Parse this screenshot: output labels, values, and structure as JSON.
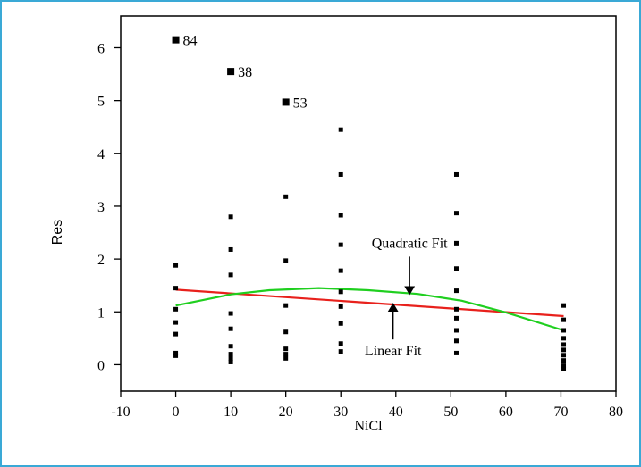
{
  "chart_data": {
    "type": "scatter",
    "title": "",
    "xlabel": "NiCl",
    "ylabel": "Res",
    "xlim": [
      -10,
      80
    ],
    "ylim": [
      -0.5,
      6.6
    ],
    "x_ticks": [
      -10,
      0,
      10,
      20,
      30,
      40,
      50,
      60,
      70,
      80
    ],
    "y_ticks": [
      0,
      1,
      2,
      3,
      4,
      5,
      6
    ],
    "points": [
      {
        "x": 0,
        "y": 6.15
      },
      {
        "x": 0,
        "y": 1.88
      },
      {
        "x": 0,
        "y": 1.45
      },
      {
        "x": 0,
        "y": 1.05
      },
      {
        "x": 0,
        "y": 0.8
      },
      {
        "x": 0,
        "y": 0.58
      },
      {
        "x": 0,
        "y": 0.22
      },
      {
        "x": 0,
        "y": 0.17
      },
      {
        "x": 10,
        "y": 5.55
      },
      {
        "x": 10,
        "y": 2.8
      },
      {
        "x": 10,
        "y": 2.18
      },
      {
        "x": 10,
        "y": 1.7
      },
      {
        "x": 10,
        "y": 0.97
      },
      {
        "x": 10,
        "y": 0.68
      },
      {
        "x": 10,
        "y": 0.35
      },
      {
        "x": 10,
        "y": 0.2
      },
      {
        "x": 10,
        "y": 0.12
      },
      {
        "x": 10,
        "y": 0.05
      },
      {
        "x": 20,
        "y": 4.97
      },
      {
        "x": 20,
        "y": 3.18
      },
      {
        "x": 20,
        "y": 1.97
      },
      {
        "x": 20,
        "y": 1.12
      },
      {
        "x": 20,
        "y": 0.62
      },
      {
        "x": 20,
        "y": 0.3
      },
      {
        "x": 20,
        "y": 0.2
      },
      {
        "x": 20,
        "y": 0.12
      },
      {
        "x": 30,
        "y": 4.45
      },
      {
        "x": 30,
        "y": 3.6
      },
      {
        "x": 30,
        "y": 2.83
      },
      {
        "x": 30,
        "y": 2.27
      },
      {
        "x": 30,
        "y": 1.78
      },
      {
        "x": 30,
        "y": 1.38
      },
      {
        "x": 30,
        "y": 1.1
      },
      {
        "x": 30,
        "y": 0.78
      },
      {
        "x": 30,
        "y": 0.4
      },
      {
        "x": 30,
        "y": 0.25
      },
      {
        "x": 51,
        "y": 3.6
      },
      {
        "x": 51,
        "y": 2.87
      },
      {
        "x": 51,
        "y": 2.3
      },
      {
        "x": 51,
        "y": 1.82
      },
      {
        "x": 51,
        "y": 1.4
      },
      {
        "x": 51,
        "y": 1.05
      },
      {
        "x": 51,
        "y": 0.88
      },
      {
        "x": 51,
        "y": 0.65
      },
      {
        "x": 51,
        "y": 0.45
      },
      {
        "x": 51,
        "y": 0.22
      },
      {
        "x": 70.5,
        "y": 1.12
      },
      {
        "x": 70.5,
        "y": 0.85
      },
      {
        "x": 70.5,
        "y": 0.65
      },
      {
        "x": 70.5,
        "y": 0.5
      },
      {
        "x": 70.5,
        "y": 0.38
      },
      {
        "x": 70.5,
        "y": 0.28
      },
      {
        "x": 70.5,
        "y": 0.18
      },
      {
        "x": 70.5,
        "y": 0.08
      },
      {
        "x": 70.5,
        "y": -0.02
      },
      {
        "x": 70.5,
        "y": -0.08
      }
    ],
    "point_labels": [
      {
        "x": 0,
        "y": 6.15,
        "text": "84"
      },
      {
        "x": 10,
        "y": 5.55,
        "text": "38"
      },
      {
        "x": 20,
        "y": 4.97,
        "text": "53"
      }
    ],
    "series": [
      {
        "name": "Linear Fit",
        "color": "#e8211c",
        "x": [
          0,
          70.5
        ],
        "y": [
          1.42,
          0.92
        ]
      },
      {
        "name": "Quadratic Fit",
        "color": "#1fcf1f",
        "x": [
          0,
          10,
          17,
          26,
          35,
          44,
          52,
          60,
          70.5
        ],
        "y": [
          1.12,
          1.33,
          1.41,
          1.45,
          1.41,
          1.34,
          1.21,
          0.99,
          0.65
        ]
      }
    ],
    "annotations": [
      {
        "text": "Quadratic Fit",
        "arrow_to": {
          "x": 42.5,
          "y": 1.37
        },
        "direction": "down"
      },
      {
        "text": "Linear Fit",
        "arrow_to": {
          "x": 39.5,
          "y": 1.12
        },
        "direction": "up"
      }
    ],
    "grid": false,
    "legend": "none"
  }
}
